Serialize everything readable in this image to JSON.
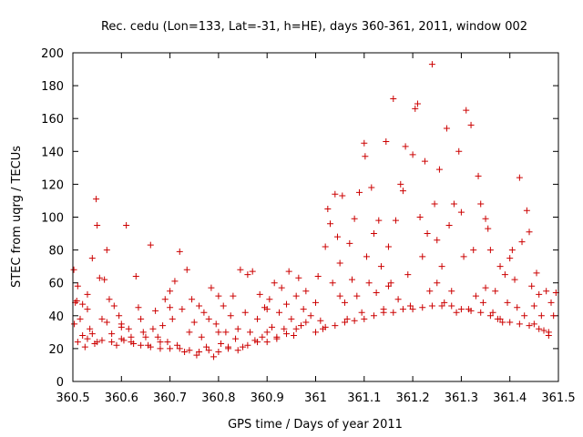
{
  "chart_data": {
    "type": "scatter",
    "title": "Rec. cedu (Lon=133, Lat=-31, h=HE), days 360-361, 2011, window 002",
    "xlabel": "GPS time / Days of year 2011",
    "ylabel": "STEC from uqrg / TECUs",
    "xlim": [
      360.5,
      361.5
    ],
    "ylim": [
      0,
      200
    ],
    "xticks": [
      "360.5",
      "360.6",
      "360.7",
      "360.8",
      "360.9",
      "361",
      "361.1",
      "361.2",
      "361.3",
      "361.4",
      "361.5"
    ],
    "yticks": [
      "0",
      "20",
      "40",
      "60",
      "80",
      "100",
      "120",
      "140",
      "160",
      "180",
      "200"
    ],
    "marker": "+",
    "color": "#cc0000",
    "grid": false,
    "series": [
      {
        "name": "STEC",
        "points": [
          [
            360.502,
            68
          ],
          [
            360.505,
            48
          ],
          [
            360.51,
            58
          ],
          [
            360.515,
            38
          ],
          [
            360.52,
            28
          ],
          [
            360.525,
            21
          ],
          [
            360.503,
            35
          ],
          [
            360.508,
            49
          ],
          [
            360.53,
            44
          ],
          [
            360.535,
            32
          ],
          [
            360.54,
            75
          ],
          [
            360.545,
            23
          ],
          [
            360.548,
            111
          ],
          [
            360.55,
            95
          ],
          [
            360.555,
            63
          ],
          [
            360.56,
            38
          ],
          [
            360.565,
            62
          ],
          [
            360.57,
            80
          ],
          [
            360.575,
            50
          ],
          [
            360.58,
            29
          ],
          [
            360.585,
            46
          ],
          [
            360.59,
            22
          ],
          [
            360.595,
            40
          ],
          [
            360.6,
            33
          ],
          [
            360.605,
            25
          ],
          [
            360.61,
            95
          ],
          [
            360.615,
            32
          ],
          [
            360.62,
            27
          ],
          [
            360.625,
            23
          ],
          [
            360.63,
            64
          ],
          [
            360.635,
            45
          ],
          [
            360.64,
            38
          ],
          [
            360.645,
            30
          ],
          [
            360.65,
            27
          ],
          [
            360.655,
            22
          ],
          [
            360.66,
            83
          ],
          [
            360.665,
            32
          ],
          [
            360.67,
            43
          ],
          [
            360.675,
            27
          ],
          [
            360.68,
            20
          ],
          [
            360.685,
            34
          ],
          [
            360.69,
            50
          ],
          [
            360.695,
            24
          ],
          [
            360.7,
            55
          ],
          [
            360.705,
            38
          ],
          [
            360.71,
            61
          ],
          [
            360.715,
            22
          ],
          [
            360.72,
            79
          ],
          [
            360.725,
            44
          ],
          [
            360.73,
            18
          ],
          [
            360.735,
            68
          ],
          [
            360.74,
            30
          ],
          [
            360.745,
            50
          ],
          [
            360.75,
            36
          ],
          [
            360.755,
            16
          ],
          [
            360.76,
            46
          ],
          [
            360.765,
            27
          ],
          [
            360.77,
            42
          ],
          [
            360.775,
            21
          ],
          [
            360.78,
            38
          ],
          [
            360.785,
            57
          ],
          [
            360.79,
            15
          ],
          [
            360.795,
            35
          ],
          [
            360.8,
            52
          ],
          [
            360.805,
            23
          ],
          [
            360.81,
            46
          ],
          [
            360.815,
            30
          ],
          [
            360.82,
            20
          ],
          [
            360.825,
            40
          ],
          [
            360.83,
            52
          ],
          [
            360.835,
            26
          ],
          [
            360.84,
            32
          ],
          [
            360.845,
            68
          ],
          [
            360.85,
            21
          ],
          [
            360.855,
            42
          ],
          [
            360.86,
            65
          ],
          [
            360.865,
            30
          ],
          [
            360.87,
            67
          ],
          [
            360.875,
            25
          ],
          [
            360.88,
            38
          ],
          [
            360.885,
            53
          ],
          [
            360.89,
            27
          ],
          [
            360.895,
            45
          ],
          [
            360.9,
            30
          ],
          [
            360.905,
            50
          ],
          [
            360.91,
            33
          ],
          [
            360.915,
            60
          ],
          [
            360.92,
            26
          ],
          [
            360.925,
            42
          ],
          [
            360.93,
            57
          ],
          [
            360.935,
            32
          ],
          [
            360.94,
            47
          ],
          [
            360.945,
            67
          ],
          [
            360.95,
            38
          ],
          [
            360.955,
            28
          ],
          [
            360.96,
            52
          ],
          [
            360.965,
            63
          ],
          [
            360.97,
            34
          ],
          [
            360.975,
            44
          ],
          [
            360.98,
            55
          ],
          [
            360.99,
            40
          ],
          [
            361.0,
            48
          ],
          [
            361.005,
            64
          ],
          [
            361.01,
            37
          ],
          [
            361.015,
            32
          ],
          [
            361.02,
            82
          ],
          [
            361.025,
            105
          ],
          [
            361.03,
            96
          ],
          [
            361.035,
            60
          ],
          [
            361.04,
            114
          ],
          [
            361.045,
            88
          ],
          [
            361.05,
            72
          ],
          [
            361.055,
            113
          ],
          [
            361.06,
            48
          ],
          [
            361.065,
            38
          ],
          [
            361.07,
            84
          ],
          [
            361.075,
            62
          ],
          [
            361.08,
            99
          ],
          [
            361.085,
            52
          ],
          [
            361.09,
            115
          ],
          [
            361.095,
            42
          ],
          [
            361.1,
            145
          ],
          [
            361.102,
            137
          ],
          [
            361.105,
            76
          ],
          [
            361.11,
            60
          ],
          [
            361.115,
            118
          ],
          [
            361.12,
            90
          ],
          [
            361.125,
            54
          ],
          [
            361.13,
            98
          ],
          [
            361.135,
            70
          ],
          [
            361.14,
            44
          ],
          [
            361.145,
            146
          ],
          [
            361.15,
            82
          ],
          [
            361.155,
            60
          ],
          [
            361.16,
            172
          ],
          [
            361.165,
            98
          ],
          [
            361.17,
            50
          ],
          [
            361.175,
            120
          ],
          [
            361.18,
            116
          ],
          [
            361.185,
            143
          ],
          [
            361.19,
            65
          ],
          [
            361.195,
            46
          ],
          [
            361.2,
            138
          ],
          [
            361.205,
            166
          ],
          [
            361.21,
            169
          ],
          [
            361.215,
            100
          ],
          [
            361.22,
            76
          ],
          [
            361.225,
            134
          ],
          [
            361.23,
            90
          ],
          [
            361.235,
            55
          ],
          [
            361.24,
            193
          ],
          [
            361.245,
            108
          ],
          [
            361.25,
            86
          ],
          [
            361.255,
            129
          ],
          [
            361.26,
            70
          ],
          [
            361.265,
            48
          ],
          [
            361.27,
            154
          ],
          [
            361.275,
            95
          ],
          [
            361.28,
            55
          ],
          [
            361.285,
            108
          ],
          [
            361.29,
            42
          ],
          [
            361.295,
            140
          ],
          [
            361.3,
            103
          ],
          [
            361.305,
            76
          ],
          [
            361.31,
            165
          ],
          [
            361.315,
            44
          ],
          [
            361.32,
            156
          ],
          [
            361.325,
            80
          ],
          [
            361.33,
            52
          ],
          [
            361.335,
            125
          ],
          [
            361.34,
            108
          ],
          [
            361.345,
            48
          ],
          [
            361.35,
            99
          ],
          [
            361.355,
            93
          ],
          [
            361.36,
            80
          ],
          [
            361.365,
            42
          ],
          [
            361.37,
            55
          ],
          [
            361.375,
            38
          ],
          [
            361.38,
            70
          ],
          [
            361.385,
            36
          ],
          [
            361.39,
            65
          ],
          [
            361.395,
            48
          ],
          [
            361.4,
            75
          ],
          [
            361.405,
            80
          ],
          [
            361.41,
            62
          ],
          [
            361.415,
            45
          ],
          [
            361.42,
            124
          ],
          [
            361.425,
            85
          ],
          [
            361.43,
            40
          ],
          [
            361.435,
            104
          ],
          [
            361.44,
            91
          ],
          [
            361.445,
            58
          ],
          [
            361.45,
            35
          ],
          [
            361.455,
            66
          ],
          [
            361.46,
            53
          ],
          [
            361.465,
            40
          ],
          [
            361.47,
            31
          ],
          [
            361.475,
            55
          ],
          [
            361.48,
            28
          ],
          [
            361.485,
            48
          ],
          [
            360.51,
            24
          ],
          [
            360.52,
            47
          ],
          [
            360.53,
            26
          ],
          [
            360.54,
            29
          ],
          [
            360.55,
            24
          ],
          [
            360.56,
            25
          ],
          [
            360.57,
            36
          ],
          [
            360.58,
            24
          ],
          [
            360.6,
            26
          ],
          [
            360.62,
            24
          ],
          [
            360.64,
            22
          ],
          [
            360.66,
            21
          ],
          [
            360.68,
            24
          ],
          [
            360.7,
            20
          ],
          [
            360.72,
            20
          ],
          [
            360.74,
            19
          ],
          [
            360.76,
            18
          ],
          [
            360.78,
            19
          ],
          [
            360.8,
            18
          ],
          [
            360.82,
            21
          ],
          [
            360.84,
            19
          ],
          [
            360.86,
            22
          ],
          [
            360.88,
            24
          ],
          [
            360.9,
            24
          ],
          [
            360.92,
            27
          ],
          [
            360.94,
            29
          ],
          [
            360.96,
            32
          ],
          [
            360.98,
            36
          ],
          [
            361.0,
            30
          ],
          [
            361.02,
            33
          ],
          [
            361.04,
            34
          ],
          [
            361.06,
            36
          ],
          [
            361.08,
            37
          ],
          [
            361.1,
            38
          ],
          [
            361.12,
            40
          ],
          [
            361.14,
            42
          ],
          [
            361.16,
            42
          ],
          [
            361.18,
            44
          ],
          [
            361.2,
            44
          ],
          [
            361.22,
            45
          ],
          [
            361.24,
            46
          ],
          [
            361.26,
            46
          ],
          [
            361.28,
            46
          ],
          [
            361.3,
            44
          ],
          [
            361.32,
            43
          ],
          [
            361.34,
            42
          ],
          [
            361.36,
            40
          ],
          [
            361.38,
            38
          ],
          [
            361.4,
            36
          ],
          [
            361.42,
            35
          ],
          [
            361.44,
            34
          ],
          [
            361.46,
            32
          ],
          [
            361.48,
            30
          ],
          [
            361.49,
            40
          ],
          [
            361.495,
            54
          ],
          [
            360.53,
            53
          ],
          [
            360.6,
            35
          ],
          [
            360.7,
            45
          ],
          [
            360.8,
            30
          ],
          [
            360.9,
            44
          ],
          [
            361.05,
            52
          ],
          [
            361.15,
            58
          ],
          [
            361.25,
            60
          ],
          [
            361.35,
            57
          ],
          [
            361.45,
            46
          ]
        ]
      }
    ]
  }
}
